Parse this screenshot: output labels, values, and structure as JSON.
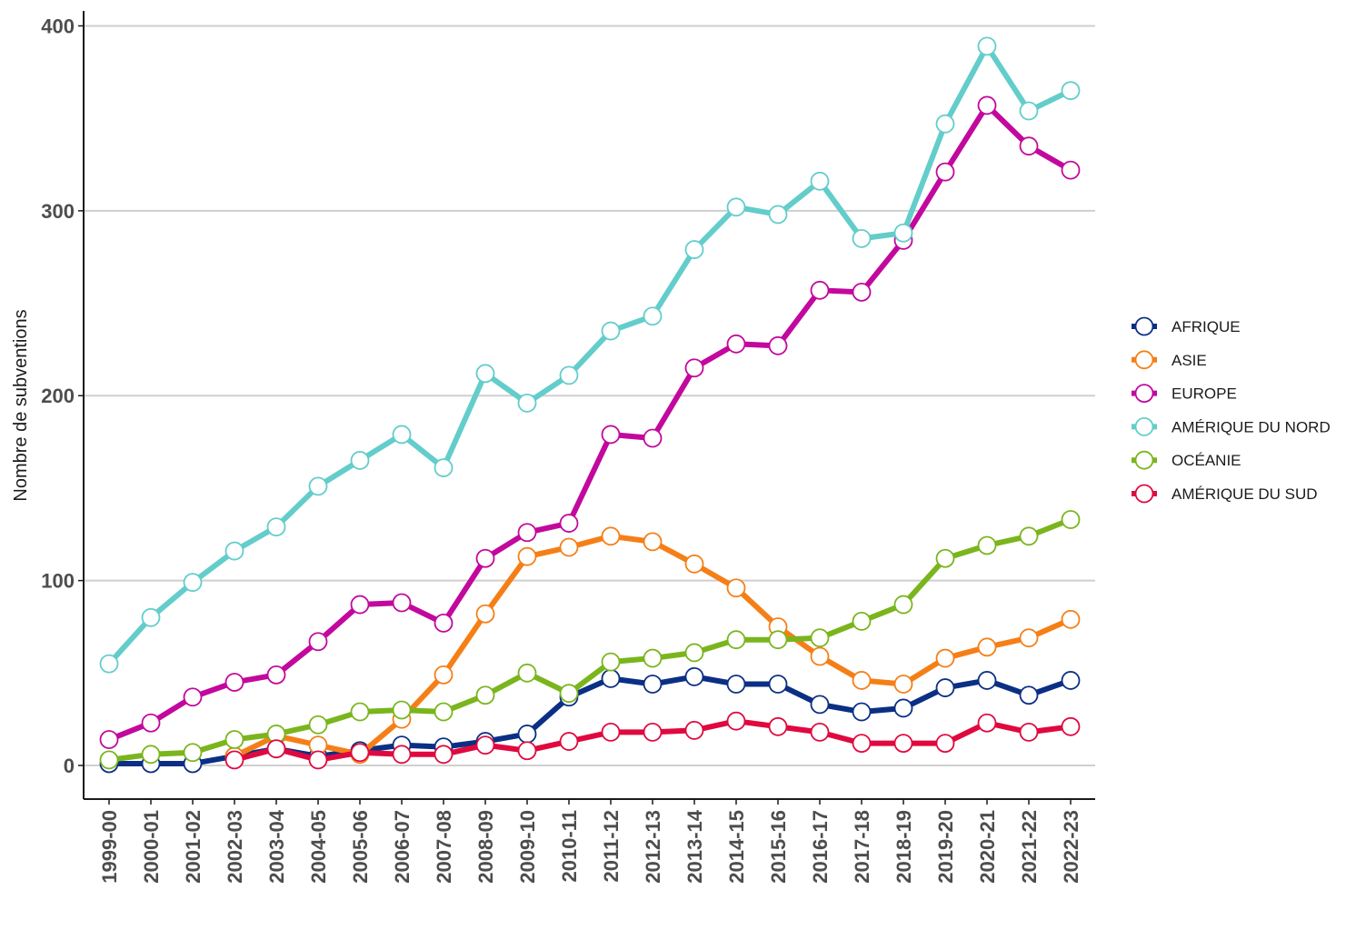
{
  "chart_data": {
    "type": "line",
    "xlabel": "",
    "ylabel": "Nombre de subventions",
    "ylim": [
      -18,
      405
    ],
    "yticks": [
      0,
      100,
      200,
      300,
      400
    ],
    "grid": "horizontal",
    "legend_position": "right",
    "categories": [
      "1999-00",
      "2000-01",
      "2001-02",
      "2002-03",
      "2003-04",
      "2004-05",
      "2005-06",
      "2006-07",
      "2007-08",
      "2008-09",
      "2009-10",
      "2010-11",
      "2011-12",
      "2012-13",
      "2013-14",
      "2014-15",
      "2015-16",
      "2016-17",
      "2017-18",
      "2018-19",
      "2019-20",
      "2020-21",
      "2021-22",
      "2022-23"
    ],
    "series": [
      {
        "name": "AFRIQUE",
        "color": "#0b2f84",
        "values": [
          1,
          1,
          1,
          5,
          9,
          5,
          8,
          11,
          10,
          13,
          17,
          37,
          47,
          44,
          48,
          44,
          44,
          33,
          29,
          31,
          42,
          46,
          38,
          46
        ]
      },
      {
        "name": "ASIE",
        "color": "#f57f17",
        "values": [
          null,
          null,
          null,
          5,
          16,
          11,
          6,
          25,
          49,
          82,
          113,
          118,
          124,
          121,
          109,
          96,
          75,
          59,
          46,
          44,
          58,
          64,
          69,
          79
        ]
      },
      {
        "name": "EUROPE",
        "color": "#c2089d",
        "values": [
          14,
          23,
          37,
          45,
          49,
          67,
          87,
          88,
          77,
          112,
          126,
          131,
          179,
          177,
          215,
          228,
          227,
          257,
          256,
          284,
          321,
          357,
          335,
          322
        ]
      },
      {
        "name": "AMÉRIQUE DU NORD",
        "color": "#63cdcb",
        "values": [
          55,
          80,
          99,
          116,
          129,
          151,
          165,
          179,
          161,
          212,
          196,
          211,
          235,
          243,
          279,
          302,
          298,
          316,
          285,
          288,
          347,
          389,
          354,
          365
        ]
      },
      {
        "name": "OCÉANIE",
        "color": "#7ab51d",
        "values": [
          3,
          6,
          7,
          14,
          17,
          22,
          29,
          30,
          29,
          38,
          50,
          39,
          56,
          58,
          61,
          68,
          68,
          69,
          78,
          87,
          112,
          119,
          124,
          133
        ]
      },
      {
        "name": "AMÉRIQUE DU SUD",
        "color": "#e0093f",
        "values": [
          null,
          null,
          null,
          3,
          9,
          3,
          7,
          6,
          6,
          11,
          8,
          13,
          18,
          18,
          19,
          24,
          21,
          18,
          12,
          12,
          12,
          23,
          18,
          21
        ]
      }
    ]
  }
}
